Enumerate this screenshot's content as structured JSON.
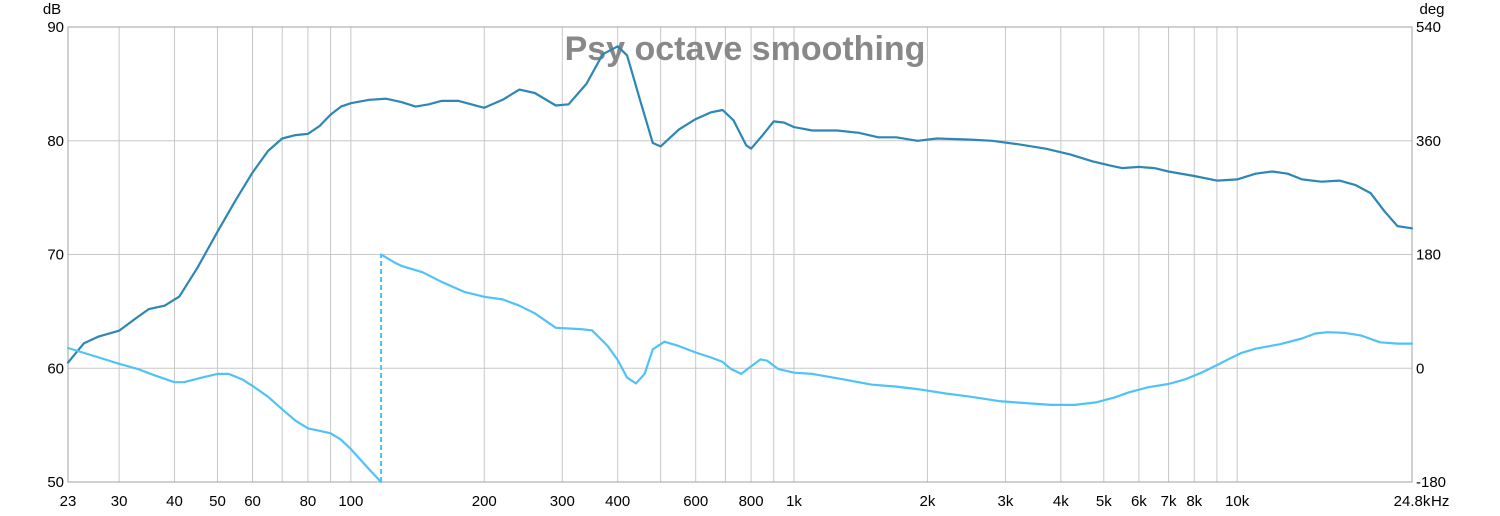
{
  "chart_data": {
    "type": "line",
    "title": "Psy octave smoothing",
    "x_scale": "log",
    "xlim": [
      23,
      24800
    ],
    "x_unit": "Hz",
    "x_ticks": [
      {
        "v": 23,
        "label": "23"
      },
      {
        "v": 30,
        "label": "30"
      },
      {
        "v": 40,
        "label": "40"
      },
      {
        "v": 50,
        "label": "50"
      },
      {
        "v": 60,
        "label": "60"
      },
      {
        "v": 80,
        "label": "80"
      },
      {
        "v": 100,
        "label": "100"
      },
      {
        "v": 200,
        "label": "200"
      },
      {
        "v": 300,
        "label": "300"
      },
      {
        "v": 400,
        "label": "400"
      },
      {
        "v": 600,
        "label": "600"
      },
      {
        "v": 800,
        "label": "800"
      },
      {
        "v": 1000,
        "label": "1k"
      },
      {
        "v": 2000,
        "label": "2k"
      },
      {
        "v": 3000,
        "label": "3k"
      },
      {
        "v": 4000,
        "label": "4k"
      },
      {
        "v": 5000,
        "label": "5k"
      },
      {
        "v": 6000,
        "label": "6k"
      },
      {
        "v": 7000,
        "label": "7k"
      },
      {
        "v": 8000,
        "label": "8k"
      },
      {
        "v": 10000,
        "label": "10k"
      },
      {
        "v": 24800,
        "label": "24.8k"
      }
    ],
    "minor_grid_x": [
      70,
      90,
      500,
      700,
      900,
      9000
    ],
    "y_left": {
      "unit": "dB",
      "lim": [
        50,
        90
      ],
      "ticks": [
        "50",
        "60",
        "70",
        "80",
        "90"
      ]
    },
    "y_right": {
      "unit": "deg",
      "lim": [
        -180,
        540
      ],
      "ticks": [
        "-180",
        "0",
        "180",
        "360",
        "540"
      ]
    },
    "grid": true,
    "colors": {
      "spl": "#2e86b4",
      "phase": "#4fc3f7",
      "grid": "#c8c8c8",
      "title": "#888888"
    },
    "series": [
      {
        "key": "spl",
        "axis": "left",
        "points": [
          [
            23,
            60.5
          ],
          [
            25,
            62.2
          ],
          [
            27,
            62.8
          ],
          [
            30,
            63.3
          ],
          [
            33,
            64.5
          ],
          [
            35,
            65.2
          ],
          [
            38,
            65.5
          ],
          [
            41,
            66.3
          ],
          [
            45,
            68.8
          ],
          [
            50,
            72
          ],
          [
            55,
            74.8
          ],
          [
            60,
            77.2
          ],
          [
            65,
            79.1
          ],
          [
            70,
            80.2
          ],
          [
            75,
            80.5
          ],
          [
            80,
            80.6
          ],
          [
            85,
            81.3
          ],
          [
            90,
            82.3
          ],
          [
            95,
            83.0
          ],
          [
            100,
            83.3
          ],
          [
            110,
            83.6
          ],
          [
            120,
            83.7
          ],
          [
            130,
            83.4
          ],
          [
            140,
            83.0
          ],
          [
            150,
            83.2
          ],
          [
            160,
            83.5
          ],
          [
            175,
            83.5
          ],
          [
            200,
            82.9
          ],
          [
            220,
            83.6
          ],
          [
            240,
            84.5
          ],
          [
            260,
            84.2
          ],
          [
            290,
            83.1
          ],
          [
            310,
            83.2
          ],
          [
            340,
            85.0
          ],
          [
            370,
            87.6
          ],
          [
            400,
            88.3
          ],
          [
            420,
            87.5
          ],
          [
            450,
            83.5
          ],
          [
            480,
            79.8
          ],
          [
            500,
            79.5
          ],
          [
            550,
            81.0
          ],
          [
            600,
            81.9
          ],
          [
            650,
            82.5
          ],
          [
            690,
            82.7
          ],
          [
            730,
            81.8
          ],
          [
            780,
            79.6
          ],
          [
            800,
            79.3
          ],
          [
            850,
            80.5
          ],
          [
            900,
            81.7
          ],
          [
            950,
            81.6
          ],
          [
            1000,
            81.2
          ],
          [
            1100,
            80.9
          ],
          [
            1250,
            80.9
          ],
          [
            1400,
            80.7
          ],
          [
            1550,
            80.3
          ],
          [
            1700,
            80.3
          ],
          [
            1900,
            80.0
          ],
          [
            2100,
            80.2
          ],
          [
            2500,
            80.1
          ],
          [
            2800,
            80.0
          ],
          [
            3200,
            79.7
          ],
          [
            3700,
            79.3
          ],
          [
            4200,
            78.8
          ],
          [
            4700,
            78.2
          ],
          [
            5200,
            77.8
          ],
          [
            5500,
            77.6
          ],
          [
            6000,
            77.7
          ],
          [
            6500,
            77.6
          ],
          [
            7000,
            77.3
          ],
          [
            8000,
            76.9
          ],
          [
            9000,
            76.5
          ],
          [
            10000,
            76.6
          ],
          [
            11000,
            77.1
          ],
          [
            12000,
            77.3
          ],
          [
            13000,
            77.1
          ],
          [
            14000,
            76.6
          ],
          [
            15500,
            76.4
          ],
          [
            17000,
            76.5
          ],
          [
            18500,
            76.1
          ],
          [
            20000,
            75.4
          ],
          [
            21500,
            73.8
          ],
          [
            23000,
            72.5
          ],
          [
            24800,
            72.3
          ]
        ]
      },
      {
        "key": "phase",
        "axis": "right",
        "segments": [
          [
            [
              23,
              32
            ],
            [
              27,
              17
            ],
            [
              30,
              7
            ],
            [
              33,
              -1
            ],
            [
              36,
              -11
            ],
            [
              40,
              -22
            ],
            [
              42,
              -22
            ],
            [
              46,
              -15
            ],
            [
              50,
              -9
            ],
            [
              53,
              -9
            ],
            [
              57,
              -18
            ],
            [
              60,
              -28
            ],
            [
              65,
              -45
            ],
            [
              70,
              -65
            ],
            [
              75,
              -83
            ],
            [
              80,
              -95
            ],
            [
              85,
              -99
            ],
            [
              90,
              -103
            ],
            [
              95,
              -113
            ],
            [
              100,
              -128
            ],
            [
              110,
              -160
            ],
            [
              117,
              -180
            ]
          ],
          [
            [
              117,
              180
            ],
            [
              125,
              168
            ],
            [
              130,
              162
            ],
            [
              145,
              152
            ],
            [
              160,
              137
            ],
            [
              180,
              121
            ],
            [
              200,
              113
            ],
            [
              220,
              109
            ],
            [
              240,
              99
            ],
            [
              260,
              87
            ],
            [
              290,
              64
            ],
            [
              330,
              62
            ],
            [
              350,
              60
            ],
            [
              380,
              35
            ],
            [
              400,
              13
            ],
            [
              420,
              -15
            ],
            [
              440,
              -24
            ],
            [
              460,
              -9
            ],
            [
              480,
              30
            ],
            [
              510,
              42
            ],
            [
              550,
              35
            ],
            [
              600,
              25
            ],
            [
              650,
              17
            ],
            [
              690,
              10
            ],
            [
              720,
              -1
            ],
            [
              760,
              -9
            ],
            [
              800,
              3
            ],
            [
              840,
              14
            ],
            [
              870,
              12
            ],
            [
              920,
              -1
            ],
            [
              1000,
              -7
            ],
            [
              1100,
              -9
            ],
            [
              1300,
              -18
            ],
            [
              1500,
              -26
            ],
            [
              1700,
              -29
            ],
            [
              1900,
              -33
            ],
            [
              2200,
              -40
            ],
            [
              2500,
              -45
            ],
            [
              2900,
              -52
            ],
            [
              3300,
              -55
            ],
            [
              3800,
              -58
            ],
            [
              4300,
              -58
            ],
            [
              4800,
              -54
            ],
            [
              5300,
              -46
            ],
            [
              5700,
              -38
            ],
            [
              6300,
              -30
            ],
            [
              7000,
              -25
            ],
            [
              7600,
              -18
            ],
            [
              8300,
              -7
            ],
            [
              9000,
              5
            ],
            [
              9600,
              15
            ],
            [
              10200,
              24
            ],
            [
              11000,
              31
            ],
            [
              12500,
              38
            ],
            [
              14000,
              47
            ],
            [
              15000,
              55
            ],
            [
              16000,
              57
            ],
            [
              17500,
              56
            ],
            [
              19000,
              52
            ],
            [
              21000,
              41
            ],
            [
              23000,
              39
            ],
            [
              24800,
              39
            ]
          ]
        ],
        "jump_at": 117
      }
    ]
  }
}
